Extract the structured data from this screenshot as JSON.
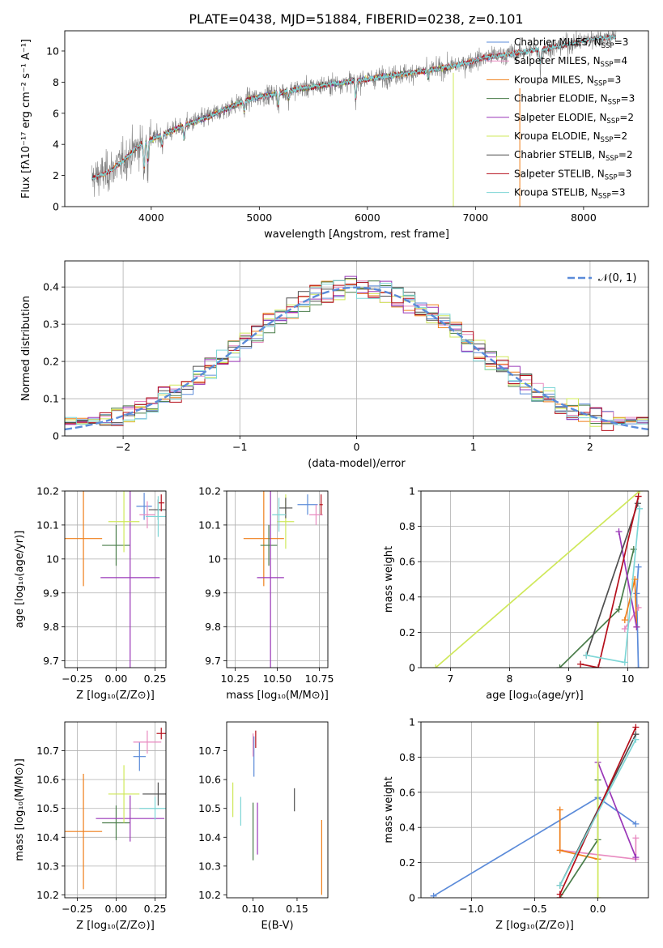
{
  "figure_title": "PLATE=0438, MJD=51884, FIBERID=0238, z=0.101",
  "colors": {
    "Chabrier MILES": "#5b8bd9",
    "Salpeter MILES": "#e88ac0",
    "Kroupa MILES": "#ef7f1a",
    "Chabrier ELODIE": "#4a7d4a",
    "Salpeter ELODIE": "#9a37b8",
    "Kroupa ELODIE": "#cfe85a",
    "Chabrier STELIB": "#4f4f4f",
    "Salpeter STELIB": "#b50f1b",
    "Kroupa STELIB": "#7ed6d6",
    "data": "#808080",
    "normal": "#5b8bd9"
  },
  "chart_data": [
    {
      "id": "spectrum",
      "type": "line",
      "title": "PLATE=0438, MJD=51884, FIBERID=0238, z=0.101",
      "xlabel": "wavelength [Angstrom, rest frame]",
      "ylabel": "Flux [fλ10⁻¹⁷ erg cm⁻² s⁻¹ A⁻¹]",
      "xlim": [
        3200,
        8600
      ],
      "ylim": [
        0,
        11.3
      ],
      "xticks": [
        4000,
        5000,
        6000,
        7000,
        8000
      ],
      "yticks": [
        0,
        2,
        4,
        6,
        8,
        10
      ],
      "grid": false,
      "legend_position": "top-right",
      "data_range": [
        3450,
        8300
      ],
      "continuum": [
        [
          3450,
          1.8
        ],
        [
          3600,
          2.2
        ],
        [
          3750,
          3.0
        ],
        [
          3850,
          3.7
        ],
        [
          3950,
          4.2
        ],
        [
          4100,
          4.6
        ],
        [
          4300,
          5.2
        ],
        [
          4500,
          5.7
        ],
        [
          4700,
          6.3
        ],
        [
          4900,
          6.9
        ],
        [
          5100,
          7.2
        ],
        [
          5300,
          7.5
        ],
        [
          5500,
          7.7
        ],
        [
          5700,
          7.9
        ],
        [
          5900,
          8.1
        ],
        [
          6100,
          8.3
        ],
        [
          6300,
          8.5
        ],
        [
          6500,
          8.7
        ],
        [
          6700,
          8.9
        ],
        [
          6900,
          9.2
        ],
        [
          7100,
          9.6
        ],
        [
          7300,
          9.8
        ],
        [
          7500,
          10.0
        ],
        [
          7700,
          10.2
        ],
        [
          7900,
          10.5
        ],
        [
          8100,
          10.8
        ],
        [
          8300,
          10.9
        ]
      ],
      "absorption_lines": [
        [
          3934,
          2.0
        ],
        [
          3968,
          1.6
        ],
        [
          4102,
          0.8
        ],
        [
          4304,
          1.0
        ],
        [
          4861,
          0.8
        ],
        [
          5175,
          1.0
        ],
        [
          5270,
          0.6
        ],
        [
          5892,
          1.4
        ],
        [
          6563,
          0.6
        ],
        [
          7600,
          1.2
        ]
      ],
      "series_labels": [
        {
          "name": "Chabrier MILES",
          "nssp": "3"
        },
        {
          "name": "Salpeter MILES",
          "nssp": "4"
        },
        {
          "name": "Kroupa MILES",
          "nssp": "3"
        },
        {
          "name": "Chabrier ELODIE",
          "nssp": "3"
        },
        {
          "name": "Salpeter ELODIE",
          "nssp": "2"
        },
        {
          "name": "Kroupa ELODIE",
          "nssp": "2"
        },
        {
          "name": "Chabrier STELIB",
          "nssp": "2"
        },
        {
          "name": "Salpeter STELIB",
          "nssp": "3"
        },
        {
          "name": "Kroupa STELIB",
          "nssp": "3"
        }
      ],
      "nssp_prefix": "N",
      "nssp_sub": "SSP",
      "model_ranges": {
        "MILES": [
          3540,
          7410
        ],
        "ELODIE": [
          3900,
          6800
        ],
        "STELIB": [
          3450,
          8300
        ]
      }
    },
    {
      "id": "residuals",
      "type": "step",
      "xlabel": "(data-model)/error",
      "ylabel": "Normed distribution",
      "xlim": [
        -2.5,
        2.5
      ],
      "ylim": [
        0,
        0.47
      ],
      "xticks": [
        -2,
        -1,
        0,
        1,
        2
      ],
      "xtick_labels": [
        "−2",
        "−1",
        "0",
        "1",
        "2"
      ],
      "yticks": [
        0.0,
        0.1,
        0.2,
        0.3,
        0.4
      ],
      "grid": true,
      "legend_position": "top-right",
      "legend": "𝒩(0, 1)",
      "bin_width": 0.1
    },
    {
      "id": "age_vs_Z",
      "type": "errorbar",
      "xlabel": "Z [log₁₀(Z/Z⊙)]",
      "ylabel": "age  [log₁₀(age/yr)]",
      "xlim": [
        -0.33,
        0.32
      ],
      "ylim": [
        9.68,
        10.2
      ],
      "xticks": [
        -0.25,
        0.0,
        0.25
      ],
      "xtick_labels": [
        "−0.25",
        "0.00",
        "0.25"
      ],
      "yticks": [
        9.7,
        9.8,
        9.9,
        10.0,
        10.1,
        10.2
      ],
      "grid": true,
      "points": [
        {
          "series": "Chabrier MILES",
          "x": 0.18,
          "xerr": 0.05,
          "y": 10.155,
          "yerr": 0.04
        },
        {
          "series": "Salpeter MILES",
          "x": 0.2,
          "xerr": 0.05,
          "y": 10.13,
          "yerr": 0.04
        },
        {
          "series": "Kroupa MILES",
          "x": -0.21,
          "xerr": 0.12,
          "y": 10.06,
          "yerr": 0.14
        },
        {
          "series": "Chabrier ELODIE",
          "x": 0.0,
          "xerr": 0.09,
          "y": 10.04,
          "yerr": 0.06
        },
        {
          "series": "Salpeter ELODIE",
          "x": 0.09,
          "xerr": 0.19,
          "y": 9.945,
          "yerr": 0.28
        },
        {
          "series": "Kroupa ELODIE",
          "x": 0.05,
          "xerr": 0.1,
          "y": 10.11,
          "yerr": 0.09
        },
        {
          "series": "Chabrier STELIB",
          "x": 0.27,
          "xerr": 0.06,
          "y": 10.145,
          "yerr": 0.03
        },
        {
          "series": "Salpeter STELIB",
          "x": 0.29,
          "xerr": 0.02,
          "y": 10.165,
          "yerr": 0.025
        },
        {
          "series": "Kroupa STELIB",
          "x": 0.27,
          "xerr": 0.08,
          "y": 10.125,
          "yerr": 0.06
        }
      ]
    },
    {
      "id": "age_vs_mass",
      "type": "errorbar",
      "xlabel": "mass [log₁₀(M/M⊙)]",
      "ylabel": "",
      "xlim": [
        10.2,
        10.8
      ],
      "ylim": [
        9.68,
        10.2
      ],
      "xticks": [
        10.25,
        10.5,
        10.75
      ],
      "xtick_labels": [
        "10.25",
        "10.50",
        "10.75"
      ],
      "yticks": [
        9.7,
        9.8,
        9.9,
        10.0,
        10.1,
        10.2
      ],
      "grid": true,
      "points": [
        {
          "series": "Chabrier MILES",
          "x": 10.68,
          "xerr": 0.06,
          "y": 10.16,
          "yerr": 0.03
        },
        {
          "series": "Salpeter MILES",
          "x": 10.73,
          "xerr": 0.04,
          "y": 10.13,
          "yerr": 0.03
        },
        {
          "series": "Kroupa MILES",
          "x": 10.42,
          "xerr": 0.12,
          "y": 10.06,
          "yerr": 0.14
        },
        {
          "series": "Chabrier ELODIE",
          "x": 10.45,
          "xerr": 0.05,
          "y": 10.04,
          "yerr": 0.06
        },
        {
          "series": "Salpeter ELODIE",
          "x": 10.46,
          "xerr": 0.08,
          "y": 9.945,
          "yerr": 0.27
        },
        {
          "series": "Kroupa ELODIE",
          "x": 10.55,
          "xerr": 0.05,
          "y": 10.11,
          "yerr": 0.08
        },
        {
          "series": "Chabrier STELIB",
          "x": 10.55,
          "xerr": 0.04,
          "y": 10.15,
          "yerr": 0.03
        },
        {
          "series": "Salpeter STELIB",
          "x": 10.76,
          "xerr": 0.01,
          "y": 10.16,
          "yerr": 0.03
        },
        {
          "series": "Kroupa STELIB",
          "x": 10.51,
          "xerr": 0.04,
          "y": 10.13,
          "yerr": 0.05
        }
      ]
    },
    {
      "id": "massweight_vs_age",
      "type": "line",
      "xlabel": "age  [log₁₀(age/yr)]",
      "ylabel": "mass weight",
      "xlim": [
        6.5,
        10.35
      ],
      "ylim": [
        0,
        1
      ],
      "xticks": [
        7,
        8,
        9,
        10
      ],
      "yticks": [
        0.0,
        0.2,
        0.4,
        0.6,
        0.8,
        1.0
      ],
      "grid": true,
      "series": [
        {
          "name": "Chabrier MILES",
          "points": [
            [
              10.18,
              0.0
            ],
            [
              10.15,
              0.42
            ],
            [
              10.18,
              0.57
            ]
          ]
        },
        {
          "name": "Salpeter MILES",
          "points": [
            [
              9.95,
              0.22
            ],
            [
              10.18,
              0.34
            ]
          ]
        },
        {
          "name": "Kroupa MILES",
          "points": [
            [
              9.95,
              0.27
            ],
            [
              10.12,
              0.5
            ],
            [
              10.15,
              0.23
            ]
          ]
        },
        {
          "name": "Chabrier ELODIE",
          "points": [
            [
              8.85,
              0.0
            ],
            [
              9.85,
              0.33
            ],
            [
              10.1,
              0.67
            ]
          ]
        },
        {
          "name": "Salpeter ELODIE",
          "points": [
            [
              9.85,
              0.77
            ],
            [
              10.15,
              0.23
            ]
          ]
        },
        {
          "name": "Kroupa ELODIE",
          "points": [
            [
              6.75,
              0.0
            ],
            [
              10.2,
              1.0
            ]
          ]
        },
        {
          "name": "Chabrier STELIB",
          "points": [
            [
              9.3,
              0.07
            ],
            [
              10.17,
              0.93
            ]
          ]
        },
        {
          "name": "Salpeter STELIB",
          "points": [
            [
              9.2,
              0.02
            ],
            [
              9.5,
              0.0
            ],
            [
              10.18,
              0.97
            ]
          ]
        },
        {
          "name": "Kroupa STELIB",
          "points": [
            [
              9.3,
              0.07
            ],
            [
              9.95,
              0.03
            ],
            [
              10.2,
              0.9
            ]
          ]
        }
      ]
    },
    {
      "id": "mass_vs_Z",
      "type": "errorbar",
      "xlabel": "Z [log₁₀(Z/Z⊙)]",
      "ylabel": "mass [log₁₀(M/M⊙)]",
      "xlim": [
        -0.33,
        0.32
      ],
      "ylim": [
        10.19,
        10.8
      ],
      "xticks": [
        -0.25,
        0.0,
        0.25
      ],
      "xtick_labels": [
        "−0.25",
        "0.00",
        "0.25"
      ],
      "yticks": [
        10.2,
        10.3,
        10.4,
        10.5,
        10.6,
        10.7
      ],
      "grid": true,
      "points": [
        {
          "series": "Chabrier MILES",
          "x": 0.15,
          "xerr": 0.04,
          "y": 10.68,
          "yerr": 0.05
        },
        {
          "series": "Salpeter MILES",
          "x": 0.2,
          "xerr": 0.09,
          "y": 10.73,
          "yerr": 0.04
        },
        {
          "series": "Kroupa MILES",
          "x": -0.21,
          "xerr": 0.12,
          "y": 10.42,
          "yerr": 0.2
        },
        {
          "series": "Chabrier ELODIE",
          "x": 0.0,
          "xerr": 0.09,
          "y": 10.45,
          "yerr": 0.06
        },
        {
          "series": "Salpeter ELODIE",
          "x": 0.09,
          "xerr": 0.22,
          "y": 10.465,
          "yerr": 0.08
        },
        {
          "series": "Kroupa ELODIE",
          "x": 0.05,
          "xerr": 0.1,
          "y": 10.55,
          "yerr": 0.1
        },
        {
          "series": "Chabrier STELIB",
          "x": 0.27,
          "xerr": 0.1,
          "y": 10.55,
          "yerr": 0.04
        },
        {
          "series": "Salpeter STELIB",
          "x": 0.29,
          "xerr": 0.03,
          "y": 10.76,
          "yerr": 0.02
        },
        {
          "series": "Kroupa STELIB",
          "x": 0.25,
          "xerr": 0.1,
          "y": 10.5,
          "yerr": 0.04
        }
      ]
    },
    {
      "id": "mass_vs_ebv",
      "type": "errorbar",
      "xlabel": "E(B-V)",
      "ylabel": "",
      "xlim": [
        0.07,
        0.185
      ],
      "ylim": [
        10.19,
        10.8
      ],
      "xticks": [
        0.1,
        0.15
      ],
      "xtick_labels": [
        "0.10",
        "0.15"
      ],
      "yticks": [
        10.2,
        10.3,
        10.4,
        10.5,
        10.6,
        10.7
      ],
      "grid": false,
      "points": [
        {
          "series": "Chabrier MILES",
          "x": 0.101,
          "xerr": 0,
          "y": 10.68,
          "yerr": 0.07
        },
        {
          "series": "Salpeter MILES",
          "x": 0.1,
          "xerr": 0,
          "y": 10.72,
          "yerr": 0.04
        },
        {
          "series": "Kroupa MILES",
          "x": 0.178,
          "xerr": 0,
          "y": 10.33,
          "yerr": 0.13
        },
        {
          "series": "Chabrier ELODIE",
          "x": 0.1,
          "xerr": 0,
          "y": 10.42,
          "yerr": 0.1
        },
        {
          "series": "Salpeter ELODIE",
          "x": 0.105,
          "xerr": 0,
          "y": 10.43,
          "yerr": 0.09
        },
        {
          "series": "Kroupa ELODIE",
          "x": 0.077,
          "xerr": 0,
          "y": 10.53,
          "yerr": 0.06
        },
        {
          "series": "Chabrier STELIB",
          "x": 0.147,
          "xerr": 0,
          "y": 10.53,
          "yerr": 0.04
        },
        {
          "series": "Salpeter STELIB",
          "x": 0.103,
          "xerr": 0,
          "y": 10.74,
          "yerr": 0.03
        },
        {
          "series": "Kroupa STELIB",
          "x": 0.086,
          "xerr": 0,
          "y": 10.49,
          "yerr": 0.05
        }
      ]
    },
    {
      "id": "massweight_vs_Z",
      "type": "line",
      "xlabel": "Z [log₁₀(Z/Z⊙)]",
      "ylabel": "mass weight",
      "xlim": [
        -1.4,
        0.4
      ],
      "ylim": [
        0,
        1
      ],
      "xticks": [
        -1.0,
        -0.5,
        0.0
      ],
      "xtick_labels": [
        "−1.0",
        "−0.5",
        "0.0"
      ],
      "yticks": [
        0.0,
        0.2,
        0.4,
        0.6,
        0.8,
        1.0
      ],
      "grid": true,
      "series": [
        {
          "name": "Chabrier MILES",
          "points": [
            [
              -1.3,
              0.01
            ],
            [
              0.0,
              0.57
            ],
            [
              0.3,
              0.42
            ]
          ]
        },
        {
          "name": "Salpeter MILES",
          "points": [
            [
              -0.3,
              0.27
            ],
            [
              0.3,
              0.22
            ],
            [
              0.3,
              0.34
            ]
          ]
        },
        {
          "name": "Kroupa MILES",
          "points": [
            [
              -0.3,
              0.5
            ],
            [
              -0.3,
              0.27
            ],
            [
              0.0,
              0.22
            ]
          ]
        },
        {
          "name": "Chabrier ELODIE",
          "points": [
            [
              -0.3,
              0.0
            ],
            [
              0.0,
              0.33
            ],
            [
              0.0,
              0.67
            ]
          ]
        },
        {
          "name": "Salpeter ELODIE",
          "points": [
            [
              0.0,
              0.77
            ],
            [
              0.3,
              0.23
            ]
          ]
        },
        {
          "name": "Kroupa ELODIE",
          "points": [
            [
              0.0,
              0.0
            ],
            [
              0.0,
              1.0
            ]
          ]
        },
        {
          "name": "Chabrier STELIB",
          "points": [
            [
              -0.3,
              0.07
            ],
            [
              0.3,
              0.93
            ]
          ]
        },
        {
          "name": "Salpeter STELIB",
          "points": [
            [
              -0.3,
              0.0
            ],
            [
              -0.3,
              0.02
            ],
            [
              0.3,
              0.97
            ]
          ]
        },
        {
          "name": "Kroupa STELIB",
          "points": [
            [
              -0.3,
              0.07
            ],
            [
              0.3,
              0.9
            ]
          ]
        }
      ]
    }
  ]
}
